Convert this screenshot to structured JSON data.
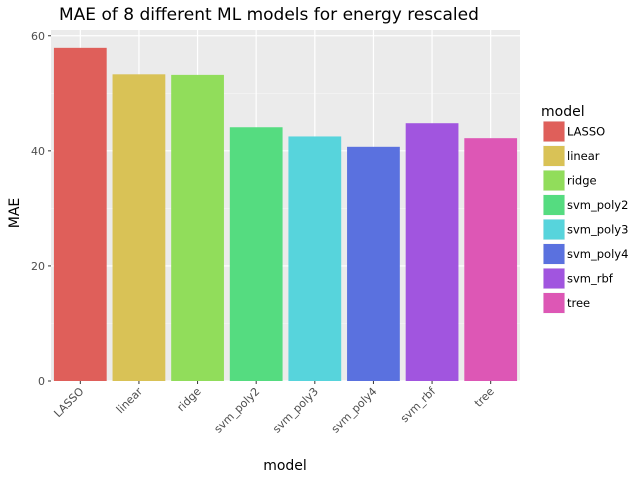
{
  "chart_data": {
    "type": "bar",
    "title": "MAE of 8 different ML models for energy rescaled",
    "xlabel": "model",
    "ylabel": "MAE",
    "categories": [
      "LASSO",
      "linear",
      "ridge",
      "svm_poly2",
      "svm_poly3",
      "svm_poly4",
      "svm_rbf",
      "tree"
    ],
    "values": [
      57.9,
      53.3,
      53.2,
      44.1,
      42.5,
      40.7,
      44.8,
      42.2
    ],
    "colors": [
      "#df5f5a",
      "#d9c256",
      "#91dd5b",
      "#55dc80",
      "#57d4dc",
      "#5a71df",
      "#a155df",
      "#dd57b5"
    ],
    "ylim": [
      0,
      61
    ],
    "yticks": [
      0,
      20,
      40,
      60
    ],
    "grid": true,
    "legend": {
      "title": "model",
      "placement": "right",
      "entries": [
        "LASSO",
        "linear",
        "ridge",
        "svm_poly2",
        "svm_poly3",
        "svm_poly4",
        "svm_rbf",
        "tree"
      ]
    }
  }
}
